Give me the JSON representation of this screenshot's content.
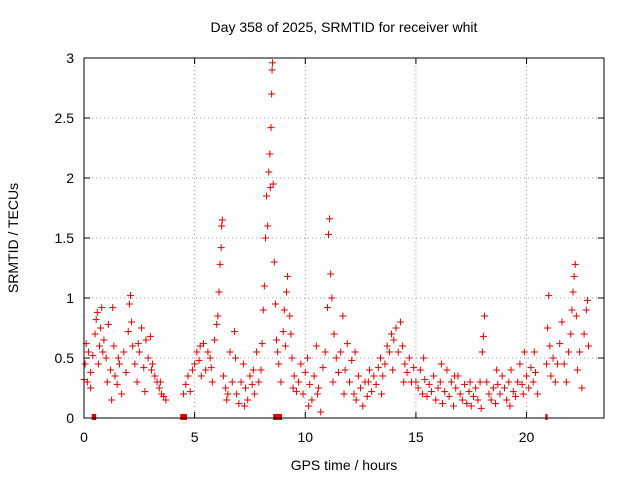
{
  "chart_data": {
    "type": "scatter",
    "title": "Day 358 of 2025, SRMTID for receiver whit",
    "xlabel": "GPS time / hours",
    "ylabel": "SRMTID / TECUs",
    "xlim": [
      0,
      23.5
    ],
    "ylim": [
      0,
      3
    ],
    "x_ticks": [
      0,
      5,
      10,
      15,
      20
    ],
    "x_tick_labels": [
      "0",
      "5",
      "10",
      "15",
      "20"
    ],
    "y_ticks": [
      0,
      0.5,
      1,
      1.5,
      2,
      2.5,
      3
    ],
    "y_tick_labels": [
      "0",
      "0.5",
      "1",
      "1.5",
      "2",
      "2.5",
      "3"
    ],
    "grid": true,
    "marker": "+",
    "color": "#e00000",
    "series": [
      {
        "name": "SRMTID",
        "points": [
          [
            0.0,
            0.32
          ],
          [
            0.05,
            0.45
          ],
          [
            0.1,
            0.62
          ],
          [
            0.15,
            0.3
          ],
          [
            0.2,
            0.55
          ],
          [
            0.3,
            0.38
          ],
          [
            0.4,
            0.52
          ],
          [
            0.5,
            0.7
          ],
          [
            0.55,
            0.82
          ],
          [
            0.6,
            0.88
          ],
          [
            0.7,
            0.6
          ],
          [
            0.75,
            0.75
          ],
          [
            0.8,
            0.92
          ],
          [
            0.85,
            0.55
          ],
          [
            0.9,
            0.65
          ],
          [
            1.0,
            0.5
          ],
          [
            1.1,
            0.78
          ],
          [
            1.2,
            0.4
          ],
          [
            1.3,
            0.92
          ],
          [
            1.35,
            0.6
          ],
          [
            1.4,
            0.35
          ],
          [
            1.5,
            0.28
          ],
          [
            1.6,
            0.45
          ],
          [
            1.7,
            0.2
          ],
          [
            1.8,
            0.55
          ],
          [
            1.9,
            0.38
          ],
          [
            2.0,
            0.72
          ],
          [
            2.05,
            0.95
          ],
          [
            2.1,
            1.02
          ],
          [
            2.2,
            0.6
          ],
          [
            2.3,
            0.45
          ],
          [
            2.4,
            0.3
          ],
          [
            2.5,
            0.55
          ],
          [
            2.6,
            0.75
          ],
          [
            2.7,
            0.42
          ],
          [
            2.8,
            0.65
          ],
          [
            2.9,
            0.5
          ],
          [
            3.0,
            0.68
          ],
          [
            3.1,
            0.45
          ],
          [
            3.2,
            0.35
          ],
          [
            3.3,
            0.3
          ],
          [
            3.4,
            0.25
          ],
          [
            3.5,
            0.2
          ],
          [
            3.6,
            0.18
          ],
          [
            3.7,
            0.15
          ],
          [
            0.3,
            0.25
          ],
          [
            0.65,
            0.45
          ],
          [
            1.05,
            0.3
          ],
          [
            1.25,
            0.15
          ],
          [
            1.55,
            0.5
          ],
          [
            2.15,
            0.8
          ],
          [
            2.45,
            0.62
          ],
          [
            2.75,
            0.22
          ],
          [
            3.05,
            0.4
          ],
          [
            3.45,
            0.3
          ],
          [
            4.5,
            0.2
          ],
          [
            4.6,
            0.28
          ],
          [
            4.7,
            0.35
          ],
          [
            4.8,
            0.22
          ],
          [
            4.9,
            0.4
          ],
          [
            5.0,
            0.45
          ],
          [
            5.1,
            0.55
          ],
          [
            5.2,
            0.48
          ],
          [
            5.3,
            0.35
          ],
          [
            5.4,
            0.62
          ],
          [
            5.5,
            0.4
          ],
          [
            5.6,
            0.55
          ],
          [
            5.7,
            0.5
          ],
          [
            5.8,
            0.3
          ],
          [
            5.9,
            0.65
          ],
          [
            6.0,
            0.78
          ],
          [
            6.05,
            0.85
          ],
          [
            6.1,
            1.05
          ],
          [
            6.15,
            1.28
          ],
          [
            6.2,
            1.42
          ],
          [
            6.22,
            1.6
          ],
          [
            6.25,
            1.65
          ],
          [
            6.3,
            0.35
          ],
          [
            6.4,
            0.25
          ],
          [
            6.5,
            0.2
          ],
          [
            6.6,
            0.55
          ],
          [
            6.7,
            0.3
          ],
          [
            6.8,
            0.72
          ],
          [
            6.9,
            0.2
          ],
          [
            7.0,
            0.12
          ],
          [
            7.1,
            0.3
          ],
          [
            7.2,
            0.45
          ],
          [
            7.3,
            0.25
          ],
          [
            7.4,
            0.15
          ],
          [
            7.5,
            0.35
          ],
          [
            7.6,
            0.28
          ],
          [
            7.7,
            0.2
          ],
          [
            7.8,
            0.55
          ],
          [
            7.9,
            0.3
          ],
          [
            8.0,
            0.4
          ],
          [
            8.05,
            0.62
          ],
          [
            8.1,
            0.9
          ],
          [
            8.15,
            1.1
          ],
          [
            8.2,
            1.5
          ],
          [
            8.25,
            1.85
          ],
          [
            8.3,
            1.6
          ],
          [
            8.35,
            2.05
          ],
          [
            8.4,
            2.2
          ],
          [
            8.42,
            1.92
          ],
          [
            8.45,
            2.42
          ],
          [
            8.48,
            2.7
          ],
          [
            8.5,
            2.9
          ],
          [
            8.52,
            2.96
          ],
          [
            8.55,
            1.95
          ],
          [
            8.6,
            1.3
          ],
          [
            8.65,
            0.95
          ],
          [
            8.7,
            0.65
          ],
          [
            8.8,
            0.45
          ],
          [
            8.9,
            0.3
          ],
          [
            9.0,
            0.72
          ],
          [
            9.05,
            0.9
          ],
          [
            9.1,
            0.6
          ],
          [
            9.15,
            1.05
          ],
          [
            9.2,
            1.18
          ],
          [
            9.3,
            0.85
          ],
          [
            9.4,
            0.5
          ],
          [
            9.5,
            0.35
          ],
          [
            9.6,
            0.22
          ],
          [
            5.25,
            0.6
          ],
          [
            5.75,
            0.42
          ],
          [
            6.45,
            0.15
          ],
          [
            6.85,
            0.5
          ],
          [
            7.25,
            0.1
          ],
          [
            7.65,
            0.4
          ],
          [
            8.75,
            0.55
          ],
          [
            9.35,
            0.7
          ],
          [
            9.45,
            0.25
          ],
          [
            9.7,
            0.3
          ],
          [
            9.8,
            0.45
          ],
          [
            9.9,
            0.2
          ],
          [
            10.0,
            0.38
          ],
          [
            10.1,
            0.5
          ],
          [
            10.2,
            0.28
          ],
          [
            10.3,
            0.15
          ],
          [
            10.4,
            0.35
          ],
          [
            10.5,
            0.6
          ],
          [
            10.6,
            0.25
          ],
          [
            10.7,
            0.05
          ],
          [
            10.8,
            0.42
          ],
          [
            10.9,
            0.55
          ],
          [
            11.0,
            0.92
          ],
          [
            11.05,
            1.53
          ],
          [
            11.1,
            1.66
          ],
          [
            11.15,
            1.2
          ],
          [
            11.2,
            1.0
          ],
          [
            11.3,
            0.7
          ],
          [
            11.4,
            0.5
          ],
          [
            11.5,
            0.38
          ],
          [
            11.6,
            0.55
          ],
          [
            11.7,
            0.85
          ],
          [
            11.8,
            0.4
          ],
          [
            11.9,
            0.62
          ],
          [
            12.0,
            0.3
          ],
          [
            12.1,
            0.48
          ],
          [
            12.2,
            0.2
          ],
          [
            12.3,
            0.15
          ],
          [
            12.4,
            0.35
          ],
          [
            12.5,
            0.25
          ],
          [
            12.6,
            0.1
          ],
          [
            12.7,
            0.3
          ],
          [
            12.8,
            0.18
          ],
          [
            12.9,
            0.4
          ],
          [
            13.0,
            0.22
          ],
          [
            13.1,
            0.35
          ],
          [
            13.2,
            0.28
          ],
          [
            13.3,
            0.42
          ],
          [
            13.4,
            0.5
          ],
          [
            13.5,
            0.35
          ],
          [
            13.6,
            0.45
          ],
          [
            13.7,
            0.6
          ],
          [
            13.8,
            0.55
          ],
          [
            13.9,
            0.7
          ],
          [
            14.0,
            0.65
          ],
          [
            14.1,
            0.75
          ],
          [
            14.2,
            0.55
          ],
          [
            14.3,
            0.8
          ],
          [
            14.4,
            0.6
          ],
          [
            14.5,
            0.45
          ],
          [
            14.6,
            0.38
          ],
          [
            14.7,
            0.5
          ],
          [
            14.8,
            0.3
          ],
          [
            14.9,
            0.42
          ],
          [
            10.15,
            0.1
          ],
          [
            10.55,
            0.2
          ],
          [
            11.25,
            0.3
          ],
          [
            11.75,
            0.2
          ],
          [
            12.25,
            0.55
          ],
          [
            12.85,
            0.3
          ],
          [
            13.45,
            0.2
          ],
          [
            13.95,
            0.4
          ],
          [
            14.45,
            0.3
          ],
          [
            15.0,
            0.3
          ],
          [
            15.1,
            0.25
          ],
          [
            15.2,
            0.4
          ],
          [
            15.3,
            0.2
          ],
          [
            15.4,
            0.32
          ],
          [
            15.5,
            0.18
          ],
          [
            15.6,
            0.28
          ],
          [
            15.7,
            0.22
          ],
          [
            15.8,
            0.35
          ],
          [
            15.9,
            0.15
          ],
          [
            16.0,
            0.25
          ],
          [
            16.1,
            0.3
          ],
          [
            16.2,
            0.12
          ],
          [
            16.3,
            0.22
          ],
          [
            16.4,
            0.4
          ],
          [
            16.5,
            0.18
          ],
          [
            16.6,
            0.3
          ],
          [
            16.7,
            0.1
          ],
          [
            16.8,
            0.25
          ],
          [
            16.9,
            0.35
          ],
          [
            17.0,
            0.2
          ],
          [
            17.1,
            0.15
          ],
          [
            17.2,
            0.28
          ],
          [
            17.3,
            0.12
          ],
          [
            17.4,
            0.22
          ],
          [
            17.5,
            0.1
          ],
          [
            17.6,
            0.18
          ],
          [
            17.7,
            0.25
          ],
          [
            17.8,
            0.15
          ],
          [
            17.9,
            0.3
          ],
          [
            18.0,
            0.55
          ],
          [
            18.05,
            0.68
          ],
          [
            18.1,
            0.85
          ],
          [
            18.2,
            0.3
          ],
          [
            18.3,
            0.2
          ],
          [
            18.4,
            0.15
          ],
          [
            18.5,
            0.25
          ],
          [
            18.6,
            0.12
          ],
          [
            18.7,
            0.28
          ],
          [
            18.8,
            0.2
          ],
          [
            18.9,
            0.35
          ],
          [
            19.0,
            0.25
          ],
          [
            19.1,
            0.15
          ],
          [
            19.2,
            0.3
          ],
          [
            19.3,
            0.4
          ],
          [
            19.4,
            0.22
          ],
          [
            19.5,
            0.18
          ],
          [
            19.6,
            0.3
          ],
          [
            19.7,
            0.45
          ],
          [
            19.8,
            0.28
          ],
          [
            19.9,
            0.55
          ],
          [
            20.0,
            0.35
          ],
          [
            20.1,
            0.25
          ],
          [
            20.2,
            0.42
          ],
          [
            20.3,
            0.3
          ],
          [
            20.4,
            0.38
          ],
          [
            20.5,
            0.2
          ],
          [
            15.35,
            0.5
          ],
          [
            16.15,
            0.45
          ],
          [
            16.75,
            0.35
          ],
          [
            17.45,
            0.3
          ],
          [
            17.95,
            0.08
          ],
          [
            18.65,
            0.4
          ],
          [
            19.25,
            0.1
          ],
          [
            19.85,
            0.2
          ],
          [
            20.35,
            0.55
          ],
          [
            20.9,
            0.45
          ],
          [
            20.95,
            0.75
          ],
          [
            21.0,
            1.02
          ],
          [
            21.05,
            0.6
          ],
          [
            21.1,
            0.35
          ],
          [
            21.2,
            0.5
          ],
          [
            21.3,
            0.3
          ],
          [
            21.4,
            0.45
          ],
          [
            21.5,
            0.62
          ],
          [
            21.6,
            0.8
          ],
          [
            21.7,
            0.45
          ],
          [
            21.8,
            0.3
          ],
          [
            21.9,
            0.55
          ],
          [
            22.0,
            0.7
          ],
          [
            22.05,
            0.9
          ],
          [
            22.1,
            1.05
          ],
          [
            22.15,
            1.18
          ],
          [
            22.2,
            1.28
          ],
          [
            22.25,
            0.85
          ],
          [
            22.3,
            0.4
          ],
          [
            22.4,
            0.55
          ],
          [
            22.5,
            0.25
          ],
          [
            22.6,
            0.7
          ],
          [
            22.7,
            0.9
          ],
          [
            22.75,
            0.98
          ],
          [
            22.8,
            0.6
          ]
        ]
      }
    ],
    "gaps": [
      [
        0.35,
        0.55
      ],
      [
        4.35,
        4.65
      ],
      [
        8.55,
        8.95
      ],
      [
        20.85,
        20.95
      ]
    ]
  }
}
